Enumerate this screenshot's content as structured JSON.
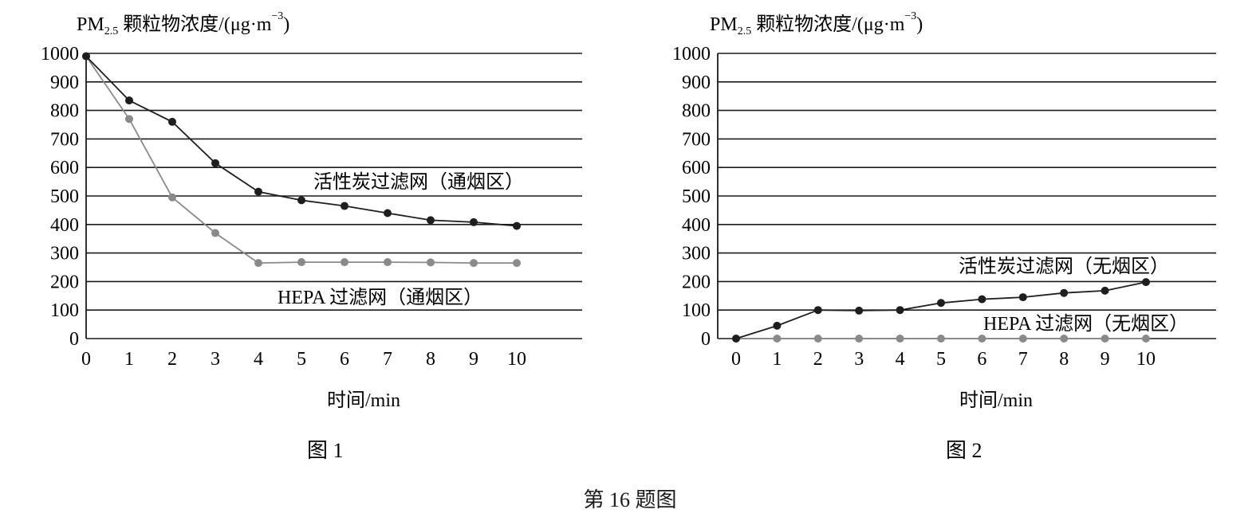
{
  "caption": "第 16 题图",
  "chart_data": [
    {
      "type": "line",
      "figure_label": "图 1",
      "ylabel_main": "PM",
      "ylabel_sub": "2.5",
      "ylabel_rest": " 颗粒物浓度/(μg·m",
      "ylabel_sup": "−3",
      "ylabel_close": ")",
      "xlabel": "时间/min",
      "x": [
        0,
        1,
        2,
        3,
        4,
        5,
        6,
        7,
        8,
        9,
        10
      ],
      "xlim": [
        0,
        11.5
      ],
      "ylim": [
        0,
        1000
      ],
      "yticks": [
        0,
        100,
        200,
        300,
        400,
        500,
        600,
        700,
        800,
        900,
        1000
      ],
      "grid": true,
      "series": [
        {
          "name": "活性炭过滤网（通烟区）",
          "color": "#1e1e1e",
          "values": [
            990,
            835,
            760,
            615,
            515,
            485,
            465,
            440,
            415,
            408,
            395
          ]
        },
        {
          "name": "HEPA 过滤网（通烟区）",
          "color": "#8a8a8a",
          "values": [
            990,
            770,
            495,
            370,
            265,
            268,
            268,
            268,
            267,
            265,
            265
          ]
        }
      ]
    },
    {
      "type": "line",
      "figure_label": "图 2",
      "ylabel_main": "PM",
      "ylabel_sub": "2.5",
      "ylabel_rest": " 颗粒物浓度/(μg·m",
      "ylabel_sup": "−3",
      "ylabel_close": ")",
      "xlabel": "时间/min",
      "x": [
        0,
        1,
        2,
        3,
        4,
        5,
        6,
        7,
        8,
        9,
        10
      ],
      "xlim": [
        0,
        11.5
      ],
      "ylim": [
        0,
        1000
      ],
      "yticks": [
        0,
        100,
        200,
        300,
        400,
        500,
        600,
        700,
        800,
        900,
        1000
      ],
      "grid": true,
      "series": [
        {
          "name": "活性炭过滤网（无烟区）",
          "color": "#1e1e1e",
          "values": [
            0,
            45,
            100,
            98,
            100,
            125,
            138,
            145,
            160,
            168,
            198
          ]
        },
        {
          "name": "HEPA 过滤网（无烟区）",
          "color": "#8a8a8a",
          "values": [
            0,
            0,
            0,
            0,
            0,
            0,
            0,
            0,
            0,
            0,
            0
          ]
        }
      ]
    }
  ]
}
